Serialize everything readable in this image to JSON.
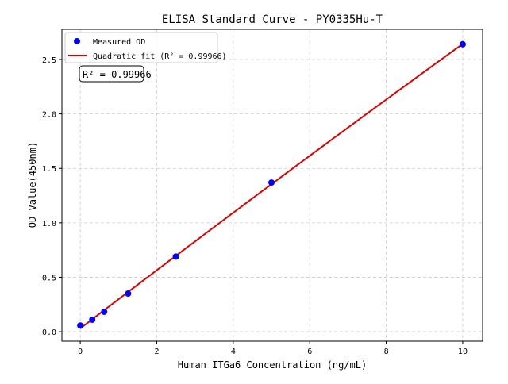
{
  "chart_data": {
    "type": "scatter",
    "title": "ELISA Standard Curve - PY0335Hu-T",
    "xlabel": "Human ITGa6 Concentration (ng/mL)",
    "ylabel": "OD Value(450nm)",
    "xlim": [
      -0.48,
      10.52
    ],
    "ylim": [
      -0.087,
      2.777
    ],
    "xticks": [
      0,
      2,
      4,
      6,
      8,
      10
    ],
    "yticks": [
      0.0,
      0.5,
      1.0,
      1.5,
      2.0,
      2.5
    ],
    "xtick_labels": [
      "0",
      "2",
      "4",
      "6",
      "8",
      "10"
    ],
    "ytick_labels": [
      "0.0",
      "0.5",
      "1.0",
      "1.5",
      "2.0",
      "2.5"
    ],
    "grid": true,
    "legend_placement": "top-left",
    "series": [
      {
        "name": "Measured OD",
        "kind": "scatter",
        "color": "#0000ff",
        "x": [
          0,
          0.3125,
          0.625,
          1.25,
          2.5,
          5,
          10
        ],
        "y": [
          0.057,
          0.11,
          0.183,
          0.35,
          0.69,
          1.37,
          2.64
        ]
      },
      {
        "name": "Quadratic fit (R² = 0.99966)",
        "kind": "line",
        "color": "#dd0000"
      }
    ],
    "annotation": "R² = 0.99966"
  }
}
